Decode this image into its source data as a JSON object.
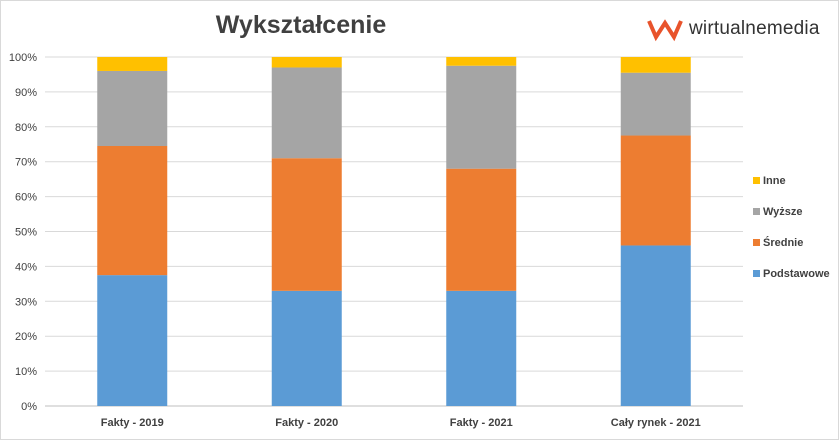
{
  "header": {
    "title": "Wykształcenie",
    "logo_text": "wirtualnemedia",
    "logo_color": "#e8532b"
  },
  "chart_data": {
    "type": "bar",
    "stacked": true,
    "title": "Wykształcenie",
    "xlabel": "",
    "ylabel": "",
    "categories": [
      "Fakty - 2019",
      "Fakty - 2020",
      "Fakty - 2021",
      "Cały rynek - 2021"
    ],
    "y_ticks": [
      "0%",
      "10%",
      "20%",
      "30%",
      "40%",
      "50%",
      "60%",
      "70%",
      "80%",
      "90%",
      "100%"
    ],
    "ylim": [
      0,
      100
    ],
    "grid": true,
    "legend_position": "right",
    "series": [
      {
        "name": "Podstawowe",
        "color": "#5b9bd5",
        "values": [
          37.5,
          33,
          33,
          46
        ]
      },
      {
        "name": "Średnie",
        "color": "#ed7d31",
        "values": [
          37,
          38,
          35,
          31.5
        ]
      },
      {
        "name": "Wyższe",
        "color": "#a5a5a5",
        "values": [
          21.5,
          26,
          29.5,
          18
        ]
      },
      {
        "name": "Inne",
        "color": "#ffc000",
        "values": [
          4,
          3,
          2.5,
          4.5
        ]
      }
    ]
  }
}
